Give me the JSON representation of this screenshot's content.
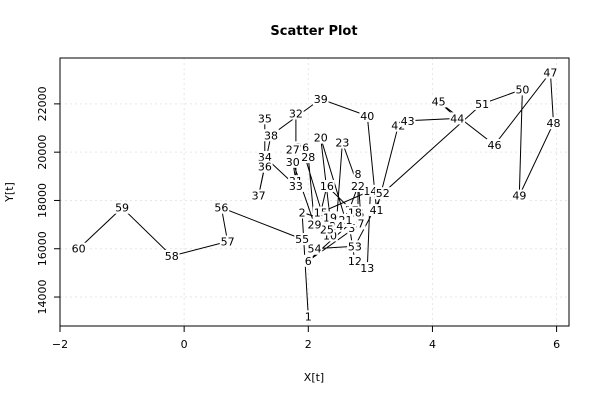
{
  "chart_data": {
    "type": "scatter",
    "title": "Scatter Plot",
    "xlabel": "X[t]",
    "ylabel": "Y[t]",
    "xlim": [
      -2,
      6.2
    ],
    "ylim": [
      12800,
      23900
    ],
    "xticks": [
      -2,
      0,
      2,
      4,
      6
    ],
    "yticks": [
      14000,
      16000,
      18000,
      20000,
      22000
    ],
    "grid": true,
    "connect_points": true,
    "point_labels_shown": true,
    "points": [
      {
        "label": "1",
        "x": 2.0,
        "y": 13200
      },
      {
        "label": "2",
        "x": 1.9,
        "y": 17500
      },
      {
        "label": "3",
        "x": 2.7,
        "y": 16850
      },
      {
        "label": "4",
        "x": 2.85,
        "y": 17350
      },
      {
        "label": "5",
        "x": 2.85,
        "y": 17450
      },
      {
        "label": "6",
        "x": 2.0,
        "y": 15500
      },
      {
        "label": "7",
        "x": 2.85,
        "y": 17050
      },
      {
        "label": "8",
        "x": 2.8,
        "y": 19100
      },
      {
        "label": "9",
        "x": 2.8,
        "y": 17500
      },
      {
        "label": "10",
        "x": 2.35,
        "y": 16550
      },
      {
        "label": "11",
        "x": 2.65,
        "y": 17150
      },
      {
        "label": "12",
        "x": 2.75,
        "y": 15500
      },
      {
        "label": "13",
        "x": 2.95,
        "y": 15200
      },
      {
        "label": "14",
        "x": 3.0,
        "y": 18400
      },
      {
        "label": "15",
        "x": 2.2,
        "y": 17500
      },
      {
        "label": "16",
        "x": 2.3,
        "y": 18600
      },
      {
        "label": "17",
        "x": 2.7,
        "y": 17600
      },
      {
        "label": "18",
        "x": 2.75,
        "y": 17500
      },
      {
        "label": "19",
        "x": 2.35,
        "y": 17300
      },
      {
        "label": "20",
        "x": 2.2,
        "y": 20600
      },
      {
        "label": "21",
        "x": 2.6,
        "y": 17200
      },
      {
        "label": "22",
        "x": 2.8,
        "y": 18600
      },
      {
        "label": "23",
        "x": 2.55,
        "y": 20400
      },
      {
        "label": "24",
        "x": 2.45,
        "y": 16950
      },
      {
        "label": "25",
        "x": 2.3,
        "y": 16800
      },
      {
        "label": "26",
        "x": 1.9,
        "y": 20200
      },
      {
        "label": "27",
        "x": 1.75,
        "y": 20100
      },
      {
        "label": "28",
        "x": 2.0,
        "y": 19800
      },
      {
        "label": "29",
        "x": 2.1,
        "y": 17000
      },
      {
        "label": "30",
        "x": 1.75,
        "y": 19600
      },
      {
        "label": "31",
        "x": 1.8,
        "y": 18800
      },
      {
        "label": "32",
        "x": 1.8,
        "y": 21600
      },
      {
        "label": "33",
        "x": 1.8,
        "y": 18600
      },
      {
        "label": "34",
        "x": 1.3,
        "y": 19800
      },
      {
        "label": "35",
        "x": 1.3,
        "y": 21400
      },
      {
        "label": "36",
        "x": 1.3,
        "y": 19400
      },
      {
        "label": "37",
        "x": 1.2,
        "y": 18200
      },
      {
        "label": "38",
        "x": 1.4,
        "y": 20700
      },
      {
        "label": "39",
        "x": 2.2,
        "y": 22200
      },
      {
        "label": "40",
        "x": 2.95,
        "y": 21500
      },
      {
        "label": "41",
        "x": 3.1,
        "y": 17600
      },
      {
        "label": "42",
        "x": 3.45,
        "y": 21100
      },
      {
        "label": "43",
        "x": 3.6,
        "y": 21300
      },
      {
        "label": "44",
        "x": 4.4,
        "y": 21400
      },
      {
        "label": "45",
        "x": 4.1,
        "y": 22100
      },
      {
        "label": "46",
        "x": 5.0,
        "y": 20300
      },
      {
        "label": "47",
        "x": 5.9,
        "y": 23300
      },
      {
        "label": "48",
        "x": 5.95,
        "y": 21200
      },
      {
        "label": "49",
        "x": 5.4,
        "y": 18200
      },
      {
        "label": "50",
        "x": 5.45,
        "y": 22600
      },
      {
        "label": "51",
        "x": 4.8,
        "y": 22000
      },
      {
        "label": "52",
        "x": 3.2,
        "y": 18300
      },
      {
        "label": "53",
        "x": 2.75,
        "y": 16100
      },
      {
        "label": "54",
        "x": 2.1,
        "y": 16000
      },
      {
        "label": "55",
        "x": 1.9,
        "y": 16400
      },
      {
        "label": "56",
        "x": 0.6,
        "y": 17700
      },
      {
        "label": "57",
        "x": 0.7,
        "y": 16300
      },
      {
        "label": "58",
        "x": -0.2,
        "y": 15700
      },
      {
        "label": "59",
        "x": -1.0,
        "y": 17700
      },
      {
        "label": "60",
        "x": -1.7,
        "y": 16000
      }
    ]
  }
}
